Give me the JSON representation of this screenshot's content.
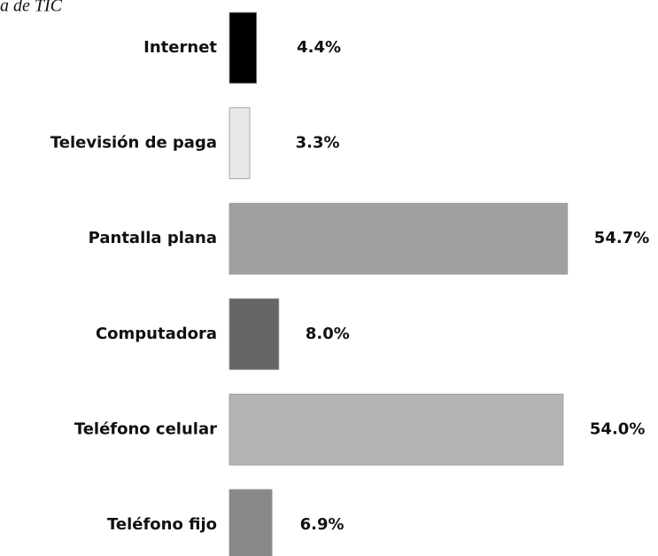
{
  "chart_data": {
    "type": "bar",
    "orientation": "horizontal",
    "title": "a de TIC",
    "categories": [
      "Internet",
      "Televisión de paga",
      "Pantalla plana",
      "Computadora",
      "Teléfono celular",
      "Teléfono fijo"
    ],
    "values": [
      4.4,
      3.3,
      54.7,
      8.0,
      54.0,
      6.9
    ],
    "value_labels": [
      "4.4%",
      "3.3%",
      "54.7%",
      "8.0%",
      "54.0%",
      "6.9%"
    ],
    "colors": [
      "#000000",
      "#e8e8e8",
      "#a0a0a0",
      "#666666",
      "#b4b4b4",
      "#888888"
    ]
  }
}
